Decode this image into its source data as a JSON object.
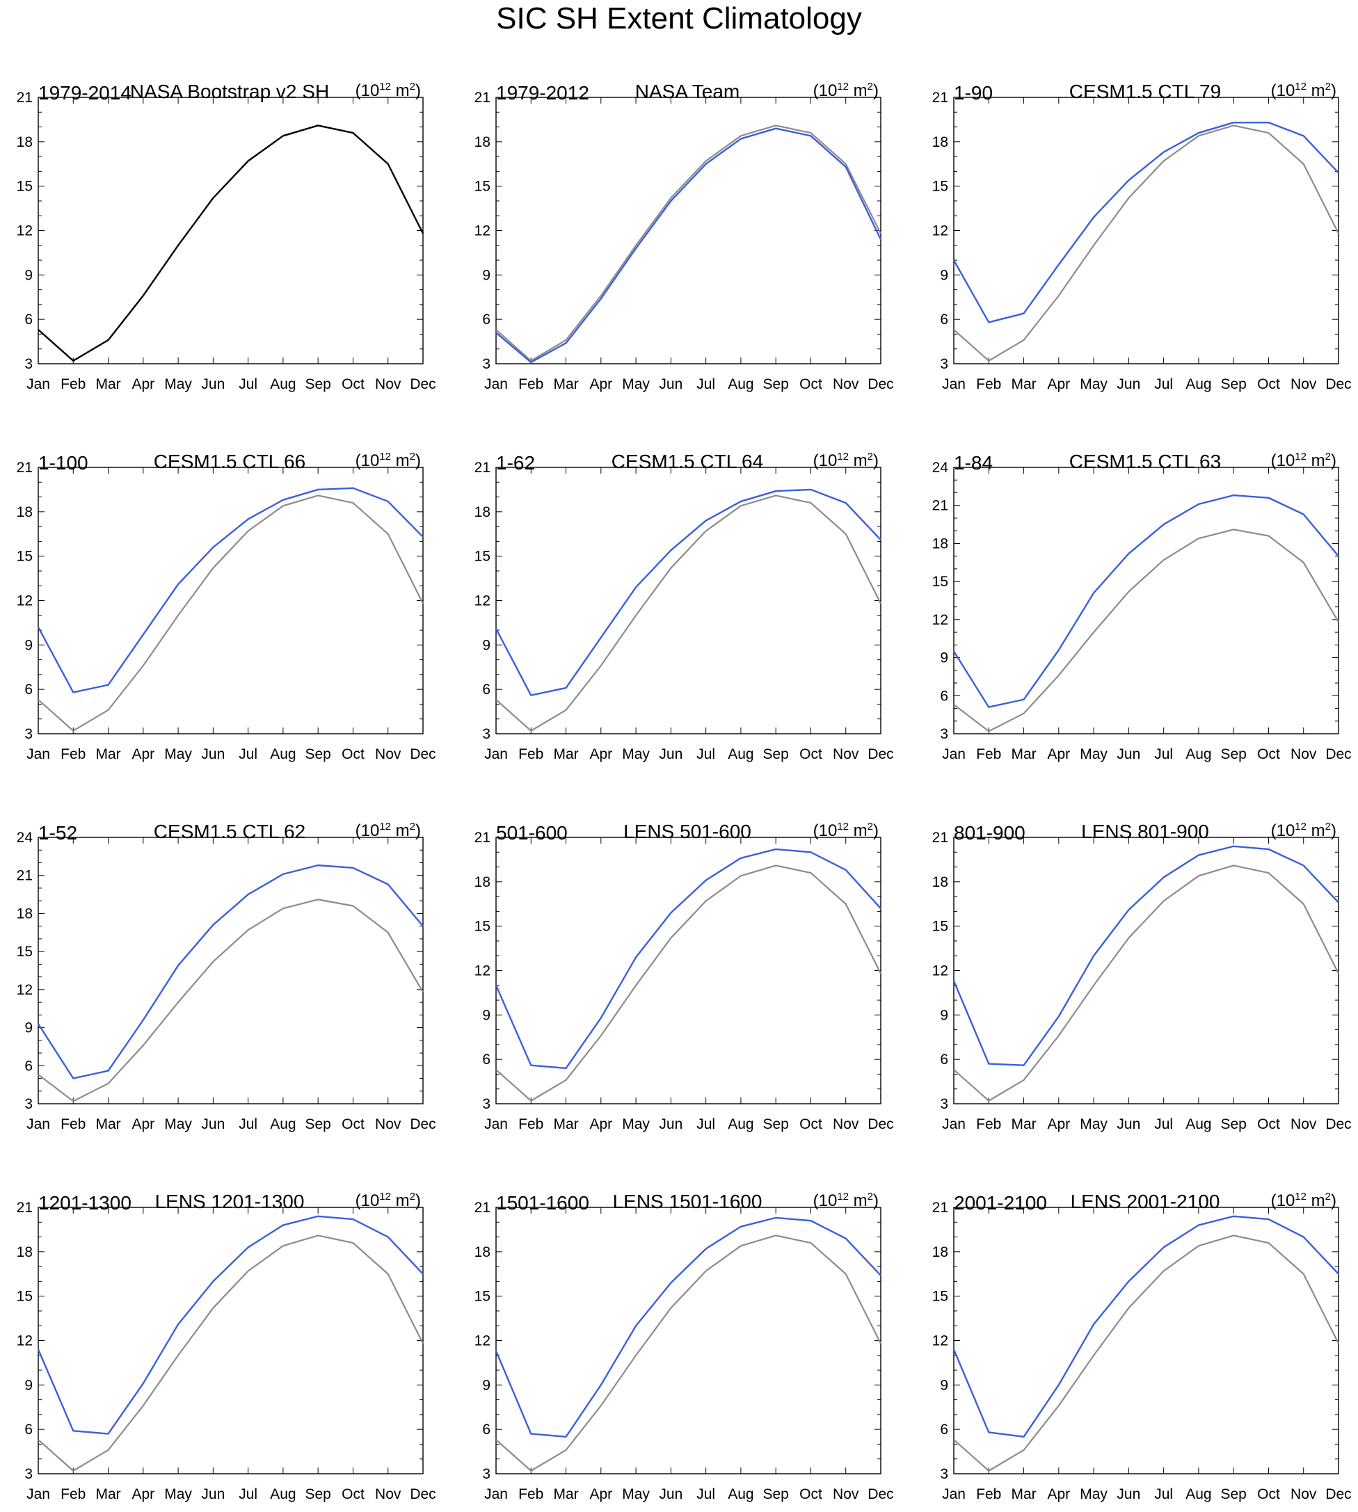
{
  "title": "SIC SH Extent Climatology",
  "units": {
    "base": "(10",
    "exp": "12",
    "mid": " m",
    "exp2": "2",
    "end": ")"
  },
  "colors": {
    "observed": "#000000",
    "reference": "#8c8c8c",
    "model": "#3a5fdc"
  },
  "chart_data": {
    "type": "line",
    "months": [
      "Jan",
      "Feb",
      "Mar",
      "Apr",
      "May",
      "Jun",
      "Jul",
      "Aug",
      "Sep",
      "Oct",
      "Nov",
      "Dec"
    ],
    "reference_series": {
      "name": "NASA Bootstrap v2 SH 1979-2014",
      "values": [
        5.3,
        3.2,
        4.6,
        7.6,
        11.0,
        14.2,
        16.7,
        18.4,
        19.1,
        18.6,
        16.5,
        11.8
      ]
    },
    "panels": [
      {
        "years": "1979-2014",
        "name": "NASA Bootstrap v2 SH",
        "ylim": [
          3,
          21
        ],
        "yticks": [
          3,
          6,
          9,
          12,
          15,
          18,
          21
        ],
        "show_reference": false,
        "series_color": "observed",
        "values": [
          5.3,
          3.2,
          4.6,
          7.6,
          11.0,
          14.2,
          16.7,
          18.4,
          19.1,
          18.6,
          16.5,
          11.8
        ]
      },
      {
        "years": "1979-2012",
        "name": "NASA Team",
        "ylim": [
          3,
          21
        ],
        "yticks": [
          3,
          6,
          9,
          12,
          15,
          18,
          21
        ],
        "show_reference": true,
        "series_color": "model",
        "values": [
          5.1,
          3.1,
          4.4,
          7.4,
          10.8,
          14.0,
          16.5,
          18.2,
          18.9,
          18.4,
          16.3,
          11.4
        ]
      },
      {
        "years": "1-90",
        "name": "CESM1.5 CTL 79",
        "ylim": [
          3,
          21
        ],
        "yticks": [
          3,
          6,
          9,
          12,
          15,
          18,
          21
        ],
        "show_reference": true,
        "series_color": "model",
        "values": [
          10.0,
          5.8,
          6.4,
          9.7,
          12.9,
          15.4,
          17.3,
          18.6,
          19.3,
          19.3,
          18.4,
          15.9
        ]
      },
      {
        "years": "1-100",
        "name": "CESM1.5 CTL 66",
        "ylim": [
          3,
          21
        ],
        "yticks": [
          3,
          6,
          9,
          12,
          15,
          18,
          21
        ],
        "show_reference": true,
        "series_color": "model",
        "values": [
          10.2,
          5.8,
          6.3,
          9.7,
          13.1,
          15.6,
          17.5,
          18.8,
          19.5,
          19.6,
          18.7,
          16.3
        ]
      },
      {
        "years": "1-62",
        "name": "CESM1.5 CTL 64",
        "ylim": [
          3,
          21
        ],
        "yticks": [
          3,
          6,
          9,
          12,
          15,
          18,
          21
        ],
        "show_reference": true,
        "series_color": "model",
        "values": [
          10.1,
          5.6,
          6.1,
          9.5,
          12.9,
          15.4,
          17.4,
          18.7,
          19.4,
          19.5,
          18.6,
          16.1
        ]
      },
      {
        "years": "1-84",
        "name": "CESM1.5 CTL 63",
        "ylim": [
          3,
          24
        ],
        "yticks": [
          3,
          6,
          9,
          12,
          15,
          18,
          21,
          24
        ],
        "show_reference": true,
        "series_color": "model",
        "values": [
          9.5,
          5.1,
          5.7,
          9.6,
          14.1,
          17.2,
          19.5,
          21.1,
          21.8,
          21.6,
          20.3,
          17.0
        ]
      },
      {
        "years": "1-52",
        "name": "CESM1.5 CTL 62",
        "ylim": [
          3,
          24
        ],
        "yticks": [
          3,
          6,
          9,
          12,
          15,
          18,
          21,
          24
        ],
        "show_reference": true,
        "series_color": "model",
        "values": [
          9.3,
          5.0,
          5.6,
          9.6,
          13.9,
          17.1,
          19.5,
          21.1,
          21.8,
          21.6,
          20.3,
          17.0
        ]
      },
      {
        "years": "501-600",
        "name": "LENS 501-600",
        "ylim": [
          3,
          21
        ],
        "yticks": [
          3,
          6,
          9,
          12,
          15,
          18,
          21
        ],
        "show_reference": true,
        "series_color": "model",
        "values": [
          11.0,
          5.6,
          5.4,
          8.8,
          12.9,
          15.9,
          18.1,
          19.6,
          20.2,
          20.0,
          18.8,
          16.2
        ]
      },
      {
        "years": "801-900",
        "name": "LENS 801-900",
        "ylim": [
          3,
          21
        ],
        "yticks": [
          3,
          6,
          9,
          12,
          15,
          18,
          21
        ],
        "show_reference": true,
        "series_color": "model",
        "values": [
          11.3,
          5.7,
          5.6,
          8.9,
          13.0,
          16.1,
          18.3,
          19.8,
          20.4,
          20.2,
          19.1,
          16.6
        ]
      },
      {
        "years": "1201-1300",
        "name": "LENS 1201-1300",
        "ylim": [
          3,
          21
        ],
        "yticks": [
          3,
          6,
          9,
          12,
          15,
          18,
          21
        ],
        "show_reference": true,
        "series_color": "model",
        "values": [
          11.4,
          5.9,
          5.7,
          9.1,
          13.1,
          16.0,
          18.3,
          19.8,
          20.4,
          20.2,
          19.0,
          16.5
        ]
      },
      {
        "years": "1501-1600",
        "name": "LENS 1501-1600",
        "ylim": [
          3,
          21
        ],
        "yticks": [
          3,
          6,
          9,
          12,
          15,
          18,
          21
        ],
        "show_reference": true,
        "series_color": "model",
        "values": [
          11.3,
          5.7,
          5.5,
          9.0,
          13.0,
          15.9,
          18.2,
          19.7,
          20.3,
          20.1,
          18.9,
          16.4
        ]
      },
      {
        "years": "2001-2100",
        "name": "LENS 2001-2100",
        "ylim": [
          3,
          21
        ],
        "yticks": [
          3,
          6,
          9,
          12,
          15,
          18,
          21
        ],
        "show_reference": true,
        "series_color": "model",
        "values": [
          11.4,
          5.8,
          5.5,
          9.0,
          13.1,
          16.0,
          18.3,
          19.8,
          20.4,
          20.2,
          19.0,
          16.5
        ]
      }
    ]
  }
}
